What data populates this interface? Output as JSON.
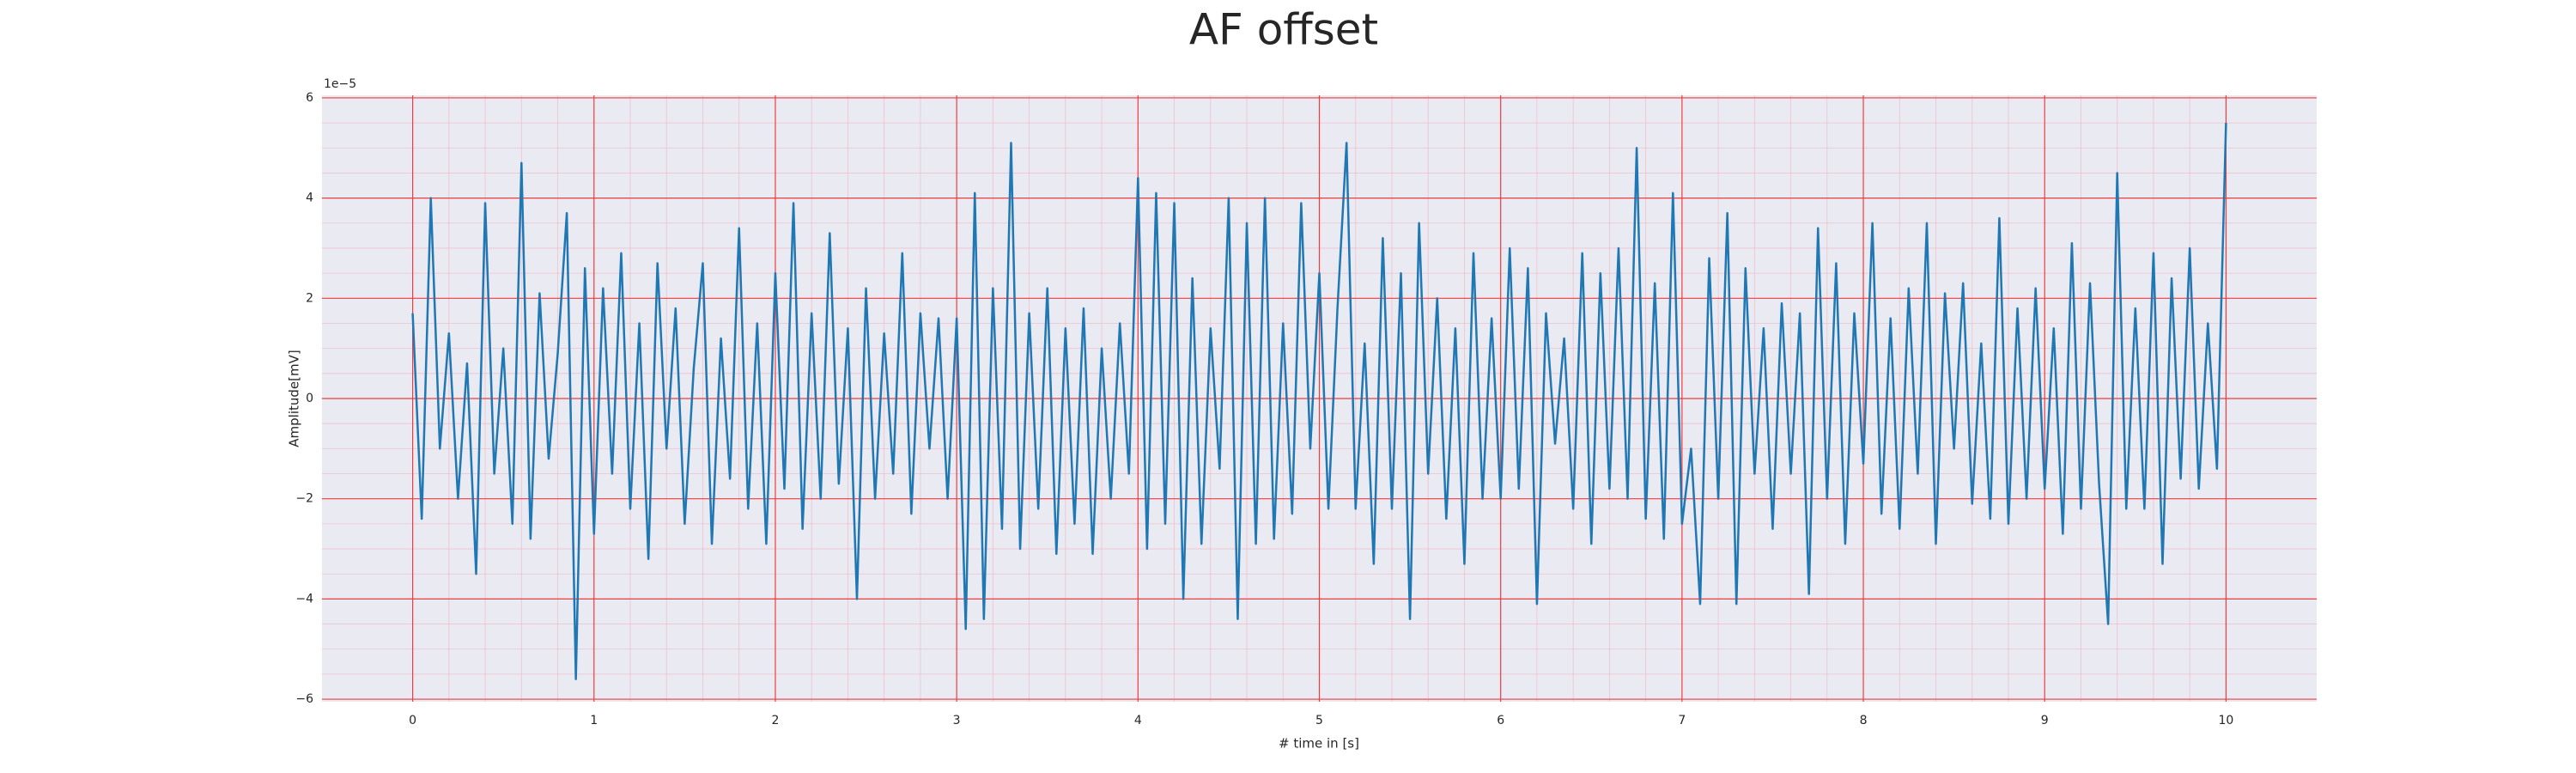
{
  "chart_data": {
    "type": "line",
    "title": "AF offset",
    "xlabel": "# time in [s]",
    "ylabel": "Amplitude[mV]",
    "y_offset_label": "1e−5",
    "color": "#1f77b4",
    "grid": true,
    "xlim": [
      -0.5,
      10.5
    ],
    "ylim": [
      -6.05e-05,
      6.05e-05
    ],
    "xticks": [
      0,
      1,
      2,
      3,
      4,
      5,
      6,
      7,
      8,
      9,
      10
    ],
    "yticks": [
      {
        "value": -6e-05,
        "label": "−6"
      },
      {
        "value": -4e-05,
        "label": "−4"
      },
      {
        "value": -2e-05,
        "label": "−2"
      },
      0,
      {
        "value": 2e-05,
        "label": "2"
      },
      {
        "value": 4e-05,
        "label": "4"
      },
      {
        "value": 6e-05,
        "label": "6"
      }
    ],
    "x": [
      0,
      0.05,
      0.1,
      0.15,
      0.2,
      0.25,
      0.3,
      0.35,
      0.4,
      0.45,
      0.5,
      0.55,
      0.6,
      0.65,
      0.7,
      0.75,
      0.8,
      0.85,
      0.9,
      0.95,
      1,
      1.05,
      1.1,
      1.15,
      1.2,
      1.25,
      1.3,
      1.35,
      1.4,
      1.45,
      1.5,
      1.55,
      1.6,
      1.65,
      1.7,
      1.75,
      1.8,
      1.85,
      1.9,
      1.95,
      2,
      2.05,
      2.1,
      2.15,
      2.2,
      2.25,
      2.3,
      2.35,
      2.4,
      2.45,
      2.5,
      2.55,
      2.6,
      2.65,
      2.7,
      2.75,
      2.8,
      2.85,
      2.9,
      2.95,
      3,
      3.05,
      3.1,
      3.15,
      3.2,
      3.25,
      3.3,
      3.35,
      3.4,
      3.45,
      3.5,
      3.55,
      3.6,
      3.65,
      3.7,
      3.75,
      3.8,
      3.85,
      3.9,
      3.95,
      4,
      4.05,
      4.1,
      4.15,
      4.2,
      4.25,
      4.3,
      4.35,
      4.4,
      4.45,
      4.5,
      4.55,
      4.6,
      4.65,
      4.7,
      4.75,
      4.8,
      4.85,
      4.9,
      4.95,
      5,
      5.05,
      5.1,
      5.15,
      5.2,
      5.25,
      5.3,
      5.35,
      5.4,
      5.45,
      5.5,
      5.55,
      5.6,
      5.65,
      5.7,
      5.75,
      5.8,
      5.85,
      5.9,
      5.95,
      6,
      6.05,
      6.1,
      6.15,
      6.2,
      6.25,
      6.3,
      6.35,
      6.4,
      6.45,
      6.5,
      6.55,
      6.6,
      6.65,
      6.7,
      6.75,
      6.8,
      6.85,
      6.9,
      6.95,
      7,
      7.05,
      7.1,
      7.15,
      7.2,
      7.25,
      7.3,
      7.35,
      7.4,
      7.45,
      7.5,
      7.55,
      7.6,
      7.65,
      7.7,
      7.75,
      7.8,
      7.85,
      7.9,
      7.95,
      8,
      8.05,
      8.1,
      8.15,
      8.2,
      8.25,
      8.3,
      8.35,
      8.4,
      8.45,
      8.5,
      8.55,
      8.6,
      8.65,
      8.7,
      8.75,
      8.8,
      8.85,
      8.9,
      8.95,
      9,
      9.05,
      9.1,
      9.15,
      9.2,
      9.25,
      9.3,
      9.35,
      9.4,
      9.45,
      9.5,
      9.55,
      9.6,
      9.65,
      9.7,
      9.75,
      9.8,
      9.85,
      9.9,
      9.95,
      10
    ],
    "values": [
      1.7e-05,
      -2.4e-05,
      4e-05,
      -1e-05,
      1.3e-05,
      -2e-05,
      7e-06,
      -3.5e-05,
      3.9e-05,
      -1.5e-05,
      1e-05,
      -2.5e-05,
      4.7e-05,
      -2.8e-05,
      2.1e-05,
      -1.2e-05,
      9e-06,
      3.7e-05,
      -5.6e-05,
      2.6e-05,
      -2.7e-05,
      2.2e-05,
      -1.5e-05,
      2.9e-05,
      -2.2e-05,
      1.5e-05,
      -3.2e-05,
      2.7e-05,
      -1e-05,
      1.8e-05,
      -2.5e-05,
      6e-06,
      2.7e-05,
      -2.9e-05,
      1.2e-05,
      -1.6e-05,
      3.4e-05,
      -2.2e-05,
      1.5e-05,
      -2.9e-05,
      2.5e-05,
      -1.8e-05,
      3.9e-05,
      -2.6e-05,
      1.7e-05,
      -2e-05,
      3.3e-05,
      -1.7e-05,
      1.4e-05,
      -4e-05,
      2.2e-05,
      -2e-05,
      1.3e-05,
      -1.5e-05,
      2.9e-05,
      -2.3e-05,
      1.7e-05,
      -1e-05,
      1.6e-05,
      -2e-05,
      1.6e-05,
      -4.6e-05,
      4.1e-05,
      -4.4e-05,
      2.2e-05,
      -2.6e-05,
      5.1e-05,
      -3e-05,
      1.7e-05,
      -2.2e-05,
      2.2e-05,
      -3.1e-05,
      1.4e-05,
      -2.5e-05,
      1.8e-05,
      -3.1e-05,
      1e-05,
      -2e-05,
      1.5e-05,
      -1.5e-05,
      4.4e-05,
      -3e-05,
      4.1e-05,
      -2.5e-05,
      3.9e-05,
      -4e-05,
      2.4e-05,
      -2.9e-05,
      1.4e-05,
      -1.4e-05,
      4e-05,
      -4.4e-05,
      3.5e-05,
      -2.9e-05,
      4e-05,
      -2.8e-05,
      1.5e-05,
      -2.3e-05,
      3.9e-05,
      -1e-05,
      2.5e-05,
      -2.2e-05,
      1.8e-05,
      5.1e-05,
      -2.2e-05,
      1.1e-05,
      -3.3e-05,
      3.2e-05,
      -2.2e-05,
      2.5e-05,
      -4.4e-05,
      3.5e-05,
      -1.5e-05,
      2e-05,
      -2.4e-05,
      1.4e-05,
      -3.3e-05,
      2.9e-05,
      -2e-05,
      1.6e-05,
      -2e-05,
      3e-05,
      -1.8e-05,
      2.6e-05,
      -4.1e-05,
      1.7e-05,
      -9e-06,
      1.2e-05,
      -2.2e-05,
      2.9e-05,
      -2.9e-05,
      2.5e-05,
      -1.8e-05,
      3e-05,
      -2e-05,
      5e-05,
      -2.4e-05,
      2.3e-05,
      -2.8e-05,
      4.1e-05,
      -2.5e-05,
      -1e-05,
      -4.1e-05,
      2.8e-05,
      -2e-05,
      3.7e-05,
      -4.1e-05,
      2.6e-05,
      -1.5e-05,
      1.4e-05,
      -2.6e-05,
      1.9e-05,
      -1.5e-05,
      1.7e-05,
      -3.9e-05,
      3.4e-05,
      -2e-05,
      2.7e-05,
      -2.9e-05,
      1.7e-05,
      -1.3e-05,
      3.5e-05,
      -2.3e-05,
      1.6e-05,
      -2.6e-05,
      2.2e-05,
      -1.5e-05,
      3.5e-05,
      -2.9e-05,
      2.1e-05,
      -1e-05,
      2.3e-05,
      -2.1e-05,
      1.1e-05,
      -2.4e-05,
      3.6e-05,
      -2.5e-05,
      1.8e-05,
      -2e-05,
      2.2e-05,
      -1.8e-05,
      1.4e-05,
      -2.7e-05,
      3.1e-05,
      -2.2e-05,
      2.3e-05,
      -1.7e-05,
      -4.5e-05,
      4.5e-05,
      -2.2e-05,
      1.8e-05,
      -2.2e-05,
      2.9e-05,
      -3.3e-05,
      2.4e-05,
      -1.6e-05,
      3e-05,
      -1.8e-05,
      1.5e-05,
      -1.4e-05,
      5.5e-05
    ]
  }
}
